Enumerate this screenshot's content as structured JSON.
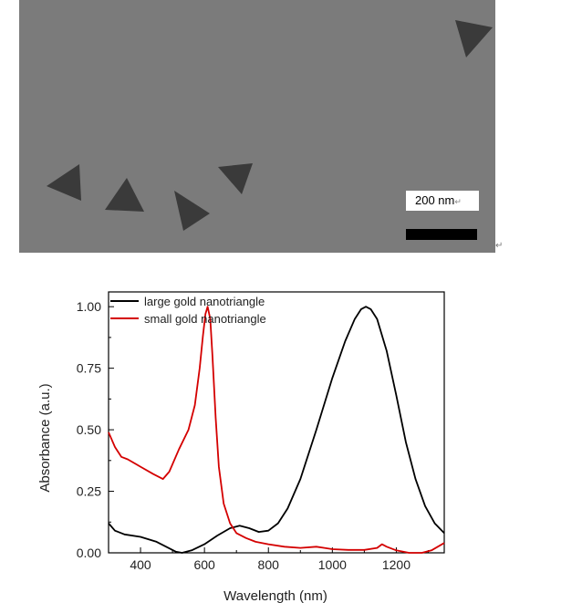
{
  "figure": {
    "tem": {
      "scale_bar_label": "200 nm",
      "background_color": "#7b7b7b",
      "particle_color": "#3a3a3a"
    },
    "paragraph_mark": "↵"
  },
  "chart_data": {
    "type": "line",
    "title": "",
    "xlabel": "Wavelength (nm)",
    "ylabel": "Absorbance (a.u.)",
    "xlim": [
      300,
      1350
    ],
    "ylim": [
      0,
      1.06
    ],
    "xticks": [
      400,
      600,
      800,
      1000,
      1200
    ],
    "yticks": [
      0.0,
      0.25,
      0.5,
      0.75,
      1.0
    ],
    "ytick_labels": [
      "0.00",
      "0.25",
      "0.50",
      "0.75",
      "1.00"
    ],
    "legend_position": "top-left",
    "grid": false,
    "series": [
      {
        "name": "large gold nanotriangle",
        "color": "#000000",
        "points": [
          [
            300,
            0.12
          ],
          [
            320,
            0.09
          ],
          [
            350,
            0.075
          ],
          [
            400,
            0.065
          ],
          [
            450,
            0.045
          ],
          [
            480,
            0.025
          ],
          [
            510,
            0.005
          ],
          [
            530,
            0.0
          ],
          [
            560,
            0.01
          ],
          [
            600,
            0.035
          ],
          [
            640,
            0.07
          ],
          [
            680,
            0.1
          ],
          [
            710,
            0.11
          ],
          [
            740,
            0.1
          ],
          [
            770,
            0.085
          ],
          [
            800,
            0.09
          ],
          [
            830,
            0.12
          ],
          [
            860,
            0.18
          ],
          [
            900,
            0.3
          ],
          [
            950,
            0.5
          ],
          [
            1000,
            0.71
          ],
          [
            1040,
            0.86
          ],
          [
            1070,
            0.95
          ],
          [
            1090,
            0.99
          ],
          [
            1105,
            1.0
          ],
          [
            1120,
            0.99
          ],
          [
            1140,
            0.95
          ],
          [
            1170,
            0.82
          ],
          [
            1200,
            0.64
          ],
          [
            1230,
            0.45
          ],
          [
            1260,
            0.3
          ],
          [
            1290,
            0.19
          ],
          [
            1320,
            0.12
          ],
          [
            1350,
            0.08
          ]
        ]
      },
      {
        "name": "small gold nanotriangle",
        "color": "#d40000",
        "points": [
          [
            300,
            0.49
          ],
          [
            320,
            0.43
          ],
          [
            340,
            0.39
          ],
          [
            360,
            0.38
          ],
          [
            400,
            0.35
          ],
          [
            440,
            0.32
          ],
          [
            470,
            0.3
          ],
          [
            490,
            0.33
          ],
          [
            520,
            0.42
          ],
          [
            550,
            0.5
          ],
          [
            570,
            0.6
          ],
          [
            585,
            0.75
          ],
          [
            595,
            0.88
          ],
          [
            603,
            0.97
          ],
          [
            610,
            1.0
          ],
          [
            618,
            0.95
          ],
          [
            625,
            0.8
          ],
          [
            635,
            0.55
          ],
          [
            645,
            0.35
          ],
          [
            660,
            0.2
          ],
          [
            680,
            0.12
          ],
          [
            700,
            0.08
          ],
          [
            730,
            0.06
          ],
          [
            760,
            0.045
          ],
          [
            800,
            0.035
          ],
          [
            850,
            0.025
          ],
          [
            900,
            0.02
          ],
          [
            950,
            0.025
          ],
          [
            975,
            0.02
          ],
          [
            1000,
            0.015
          ],
          [
            1050,
            0.012
          ],
          [
            1100,
            0.012
          ],
          [
            1140,
            0.02
          ],
          [
            1155,
            0.035
          ],
          [
            1170,
            0.025
          ],
          [
            1200,
            0.01
          ],
          [
            1240,
            0.0
          ],
          [
            1280,
            0.0
          ],
          [
            1310,
            0.01
          ],
          [
            1350,
            0.04
          ]
        ]
      }
    ]
  }
}
